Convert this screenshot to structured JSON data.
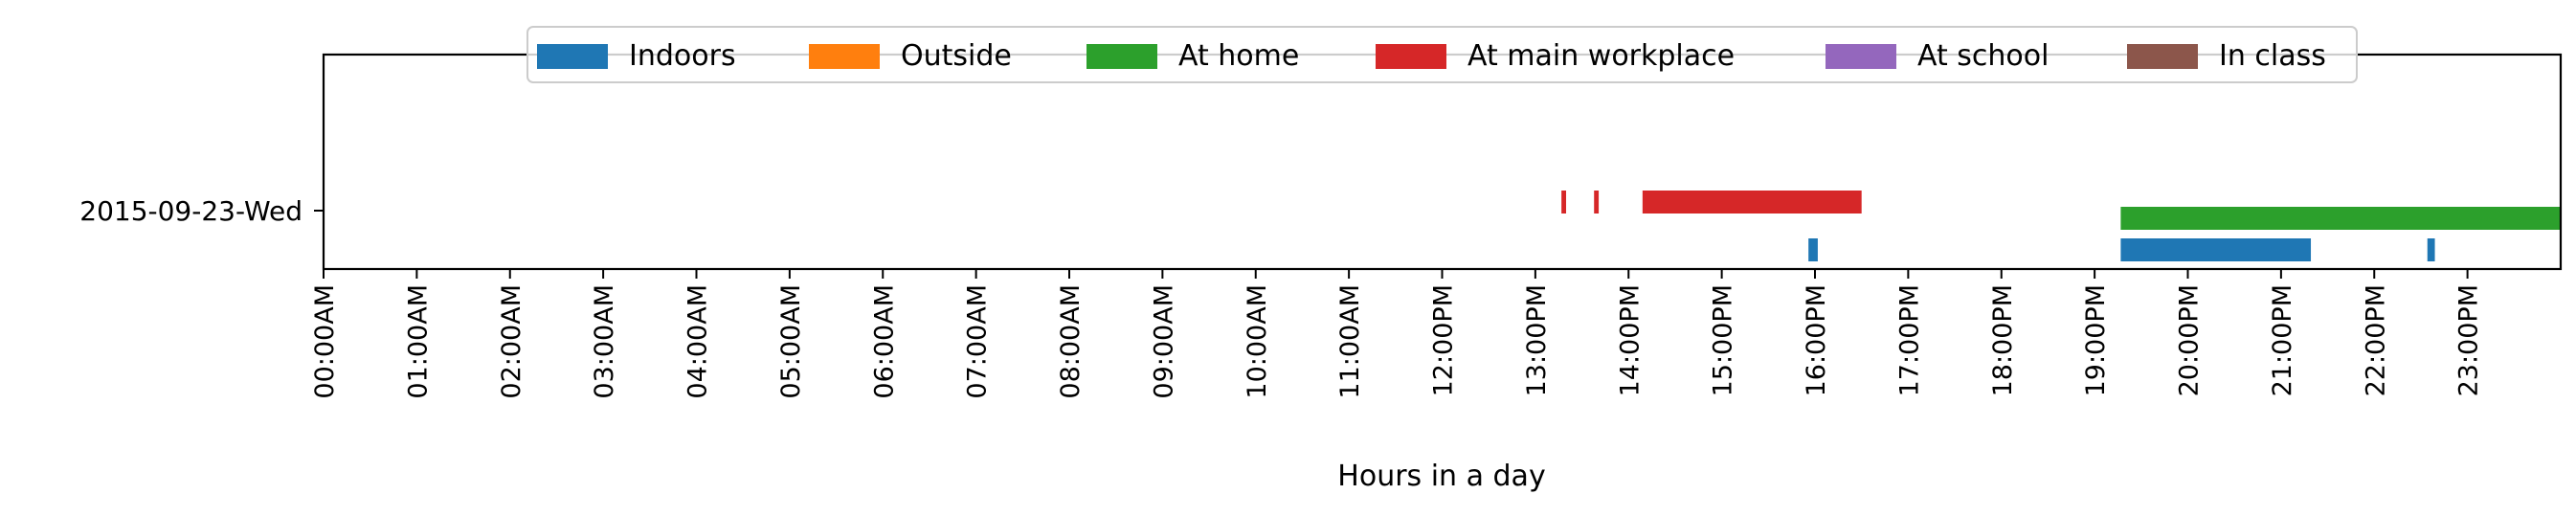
{
  "chart_data": {
    "type": "timeline",
    "title": "",
    "xlabel": "Hours in a day",
    "ylabel": "",
    "xlim": [
      0,
      24
    ],
    "x_unit": "hours",
    "grid": false,
    "legend_position": "top-center",
    "x_ticks": [
      "00:00AM",
      "01:00AM",
      "02:00AM",
      "03:00AM",
      "04:00AM",
      "05:00AM",
      "06:00AM",
      "07:00AM",
      "08:00AM",
      "09:00AM",
      "10:00AM",
      "11:00AM",
      "12:00PM",
      "13:00PM",
      "14:00PM",
      "15:00PM",
      "16:00PM",
      "17:00PM",
      "18:00PM",
      "19:00PM",
      "20:00PM",
      "21:00PM",
      "22:00PM",
      "23:00PM"
    ],
    "rows": [
      "2015-09-23-Wed"
    ],
    "legend": [
      {
        "name": "Indoors",
        "color": "#1f77b4"
      },
      {
        "name": "Outside",
        "color": "#ff7f0e"
      },
      {
        "name": "At home",
        "color": "#2ca02c"
      },
      {
        "name": "At main workplace",
        "color": "#d62728"
      },
      {
        "name": "At school",
        "color": "#9467bd"
      },
      {
        "name": "In class",
        "color": "#8c564b"
      }
    ],
    "series": [
      {
        "name": "Indoors",
        "row": "2015-09-23-Wed",
        "intervals": [
          [
            15.93,
            16.03
          ],
          [
            19.28,
            21.32
          ],
          [
            22.57,
            22.65
          ]
        ]
      },
      {
        "name": "Outside",
        "row": "2015-09-23-Wed",
        "intervals": []
      },
      {
        "name": "At home",
        "row": "2015-09-23-Wed",
        "intervals": [
          [
            19.28,
            24.0
          ]
        ]
      },
      {
        "name": "At main workplace",
        "row": "2015-09-23-Wed",
        "intervals": [
          [
            13.28,
            13.33
          ],
          [
            13.63,
            13.68
          ],
          [
            14.15,
            16.5
          ]
        ]
      },
      {
        "name": "At school",
        "row": "2015-09-23-Wed",
        "intervals": []
      },
      {
        "name": "In class",
        "row": "2015-09-23-Wed",
        "intervals": []
      }
    ]
  }
}
